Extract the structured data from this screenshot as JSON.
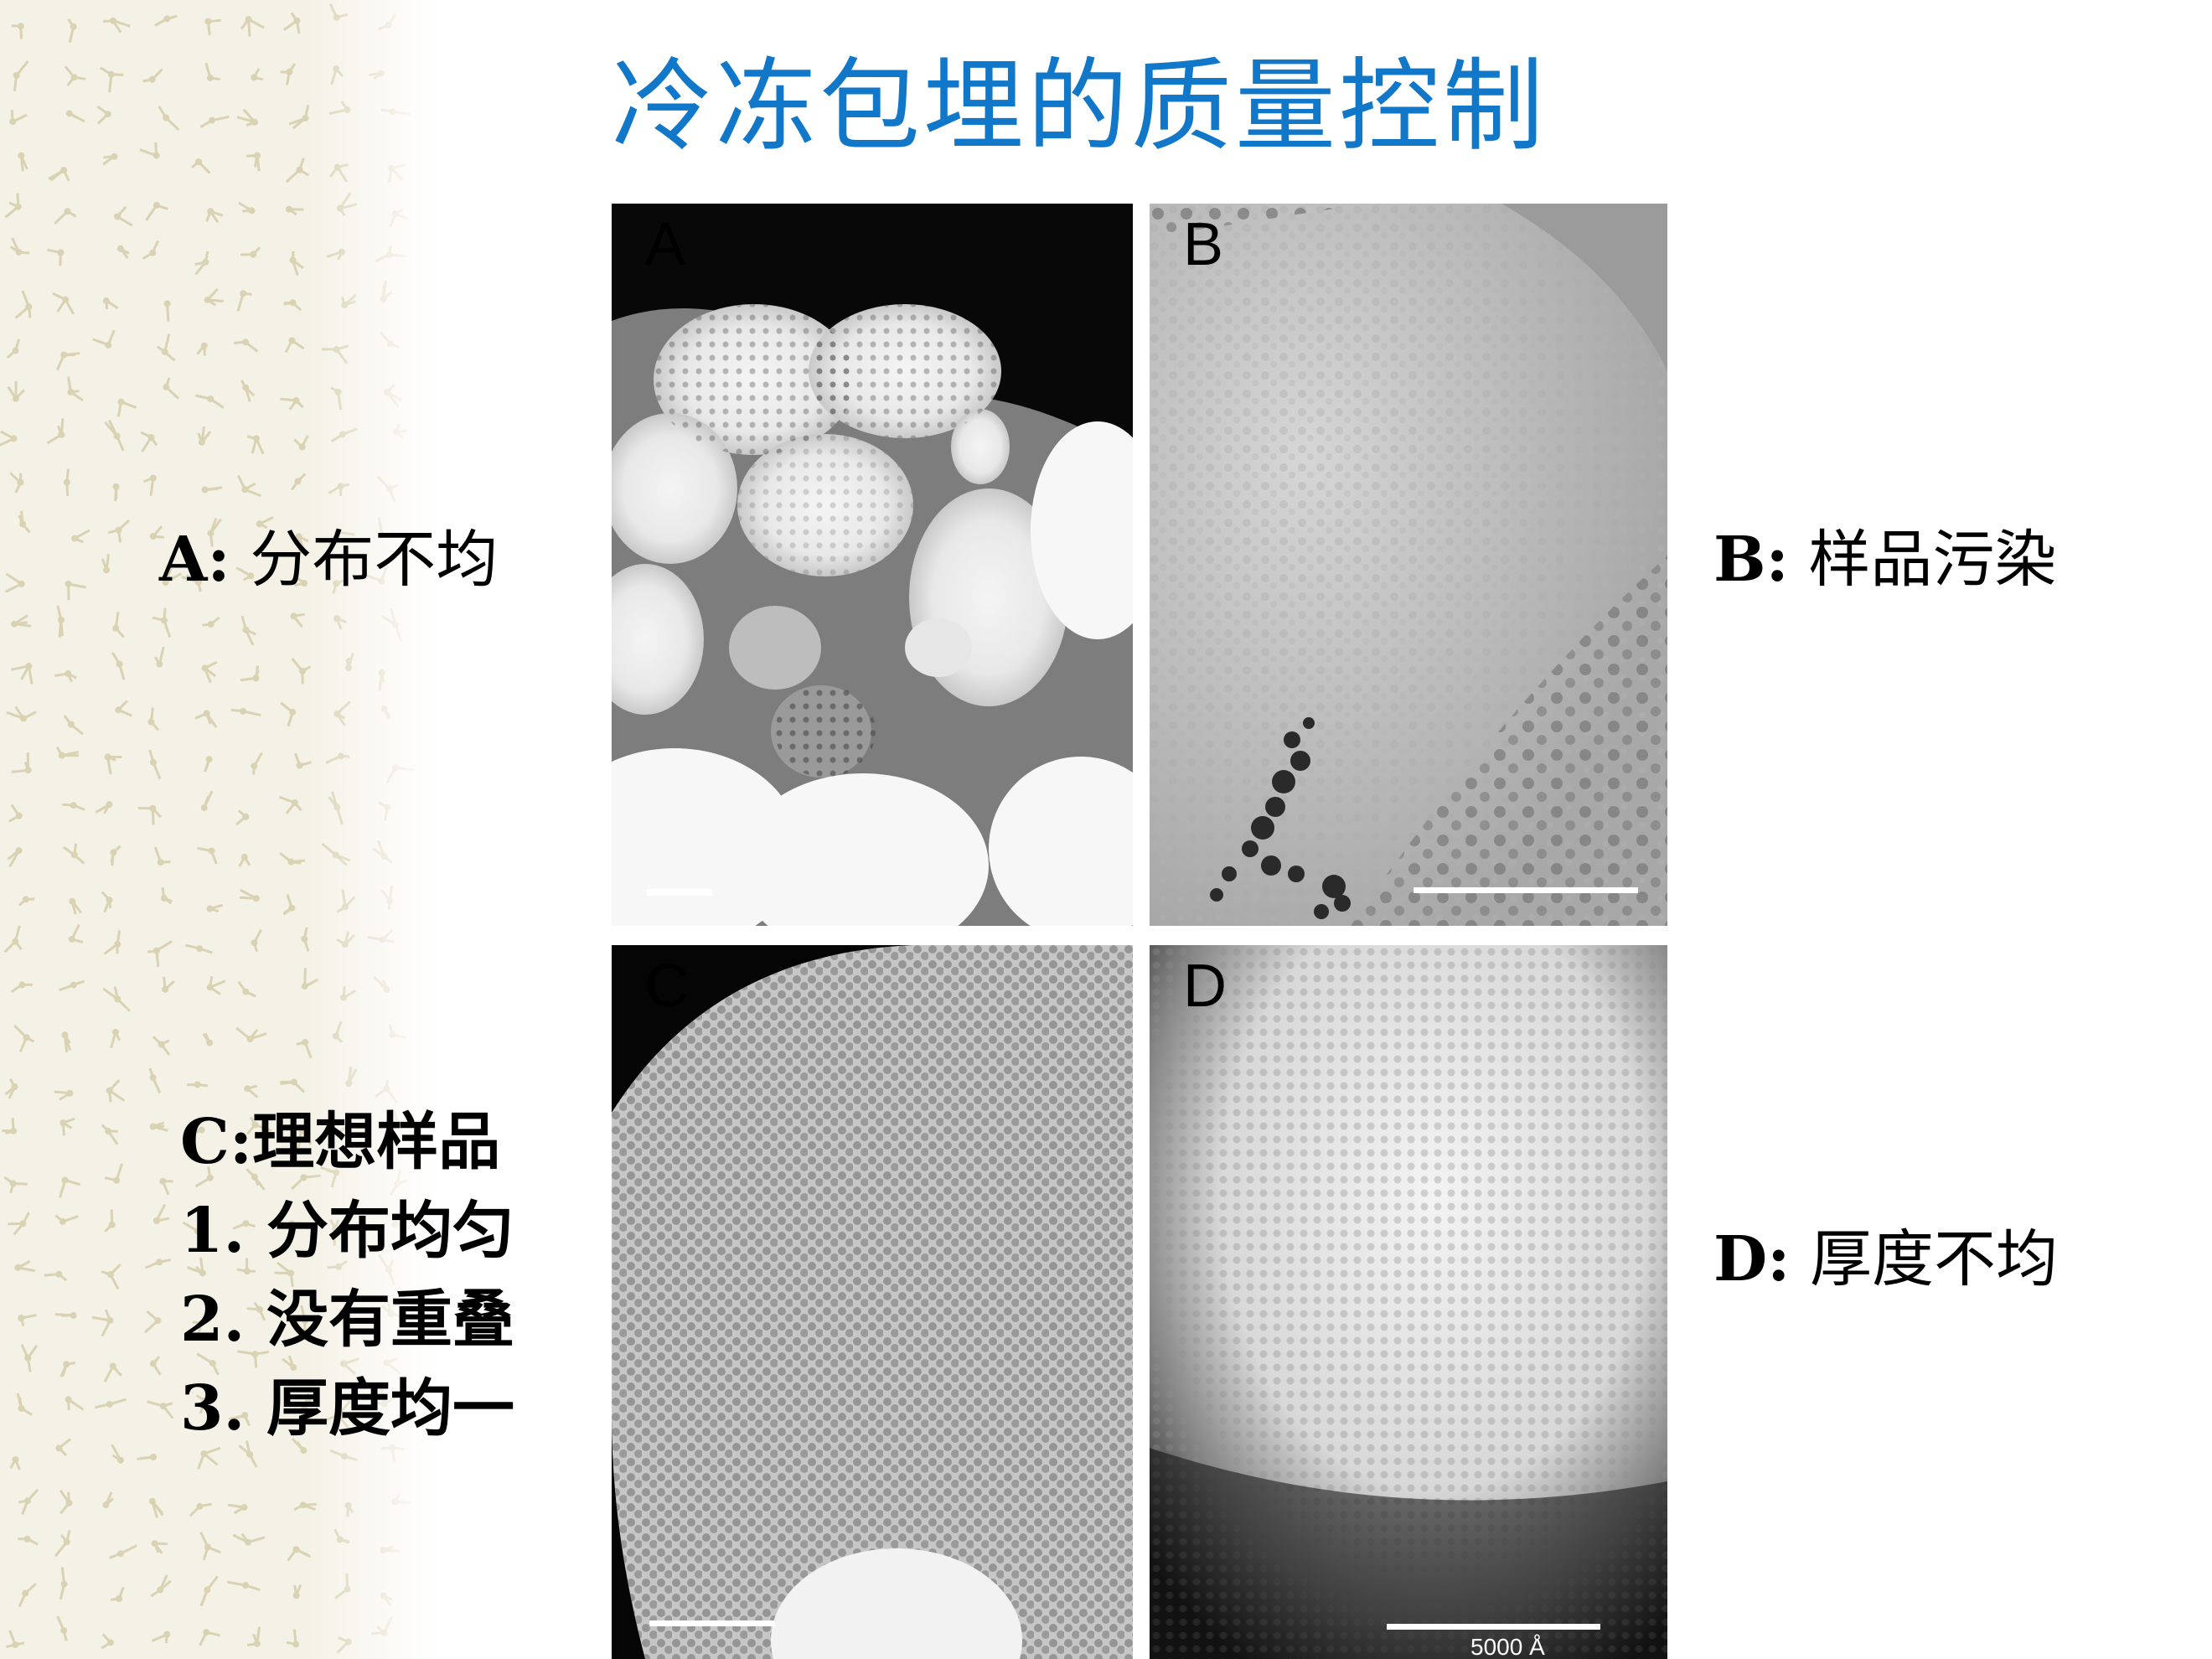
{
  "slide": {
    "title": "冷冻包埋的质量控制",
    "title_color": "#1177c8",
    "labels": {
      "a_key": "A:",
      "a_text": "分布不均",
      "b_key": "B:",
      "b_text": "样品污染",
      "d_key": "D:",
      "d_text": "厚度不均",
      "c_lines": [
        "C:理想样品",
        "1. 分布均匀",
        "2. 没有重叠",
        "3. 厚度均一"
      ]
    },
    "panels": [
      {
        "letter": "A"
      },
      {
        "letter": "B"
      },
      {
        "letter": "C"
      },
      {
        "letter": "D",
        "scale_bar_label": "5000 Å"
      }
    ]
  }
}
